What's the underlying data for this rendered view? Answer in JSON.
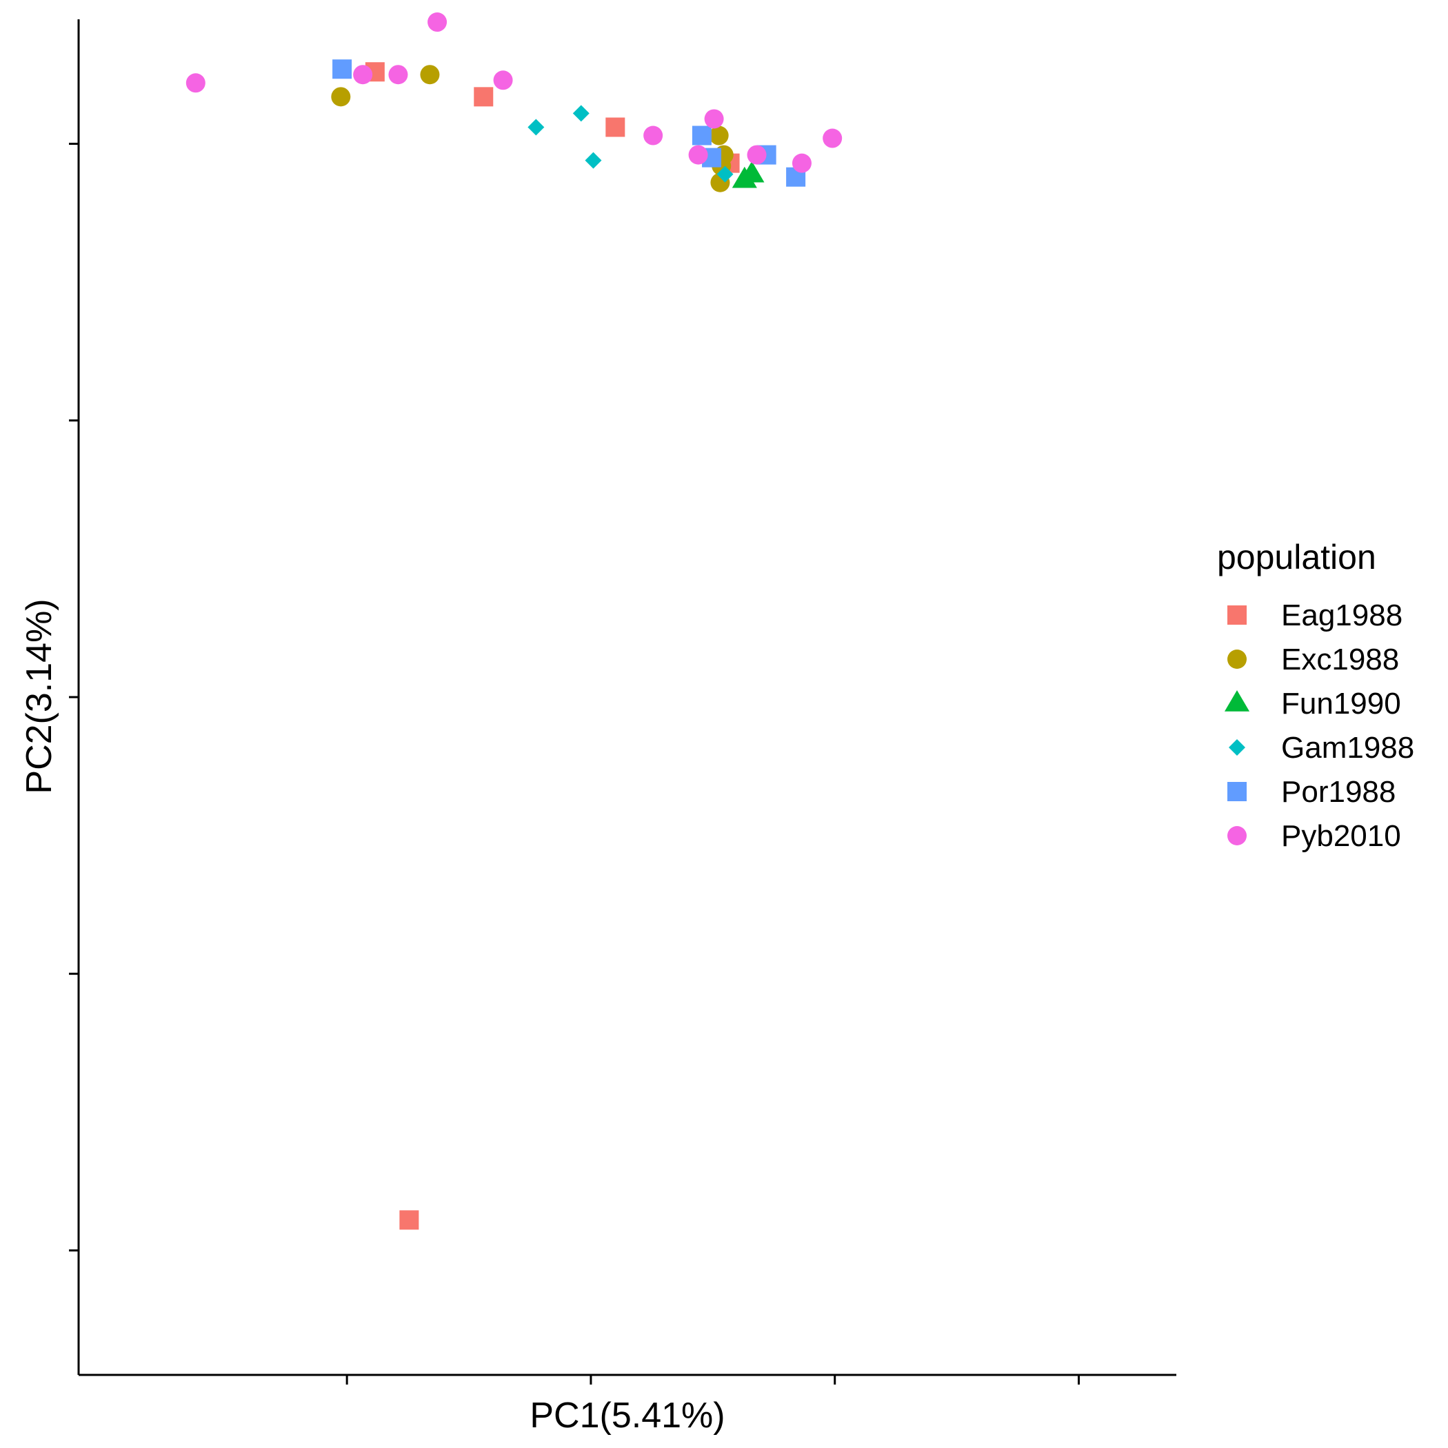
{
  "chart_data": {
    "type": "scatter",
    "xlabel": "PC1(5.41%)",
    "ylabel": "PC2(3.14%)",
    "xlim": [
      -0.62,
      0.28
    ],
    "ylim": [
      -0.445,
      0.045
    ],
    "xticks": [
      -0.4,
      -0.2,
      0.0,
      0.2
    ],
    "yticks": [
      -0.4,
      -0.3,
      -0.2,
      -0.1,
      0.0
    ],
    "show_tick_labels": false,
    "grid": false,
    "legend": {
      "title": "population",
      "placement": "right",
      "entries": [
        {
          "name": "Eag1988",
          "color": "#F8766D",
          "shape": "square"
        },
        {
          "name": "Exc1988",
          "color": "#B79F00",
          "shape": "circle"
        },
        {
          "name": "Fun1990",
          "color": "#00BA38",
          "shape": "triangle"
        },
        {
          "name": "Gam1988",
          "color": "#00BFC4",
          "shape": "diamond"
        },
        {
          "name": "Por1988",
          "color": "#619CFF",
          "shape": "square"
        },
        {
          "name": "Pyb2010",
          "color": "#F564E3",
          "shape": "circle"
        }
      ]
    },
    "series": [
      {
        "name": "Eag1988",
        "points": [
          [
            -0.377,
            0.026
          ],
          [
            -0.288,
            0.017
          ],
          [
            -0.18,
            0.006
          ],
          [
            -0.086,
            -0.007
          ],
          [
            -0.349,
            -0.389
          ]
        ]
      },
      {
        "name": "Exc1988",
        "points": [
          [
            -0.405,
            0.017
          ],
          [
            -0.332,
            0.025
          ],
          [
            -0.095,
            0.003
          ],
          [
            -0.091,
            -0.004
          ],
          [
            -0.093,
            -0.008
          ],
          [
            -0.094,
            -0.014
          ]
        ]
      },
      {
        "name": "Fun1990",
        "points": [
          [
            -0.068,
            -0.011
          ],
          [
            -0.074,
            -0.013
          ]
        ]
      },
      {
        "name": "Gam1988",
        "points": [
          [
            -0.245,
            0.006
          ],
          [
            -0.208,
            0.011
          ],
          [
            -0.198,
            -0.006
          ],
          [
            -0.09,
            -0.011
          ]
        ]
      },
      {
        "name": "Por1988",
        "points": [
          [
            -0.404,
            0.027
          ],
          [
            -0.109,
            0.003
          ],
          [
            -0.101,
            -0.005
          ],
          [
            -0.056,
            -0.004
          ],
          [
            -0.032,
            -0.012
          ]
        ]
      },
      {
        "name": "Pyb2010",
        "points": [
          [
            -0.524,
            0.022
          ],
          [
            -0.387,
            0.025
          ],
          [
            -0.358,
            0.025
          ],
          [
            -0.326,
            0.044
          ],
          [
            -0.272,
            0.023
          ],
          [
            -0.149,
            0.003
          ],
          [
            -0.112,
            -0.004
          ],
          [
            -0.099,
            0.009
          ],
          [
            -0.064,
            -0.004
          ],
          [
            -0.027,
            -0.007
          ],
          [
            -0.002,
            0.002
          ]
        ]
      }
    ]
  }
}
